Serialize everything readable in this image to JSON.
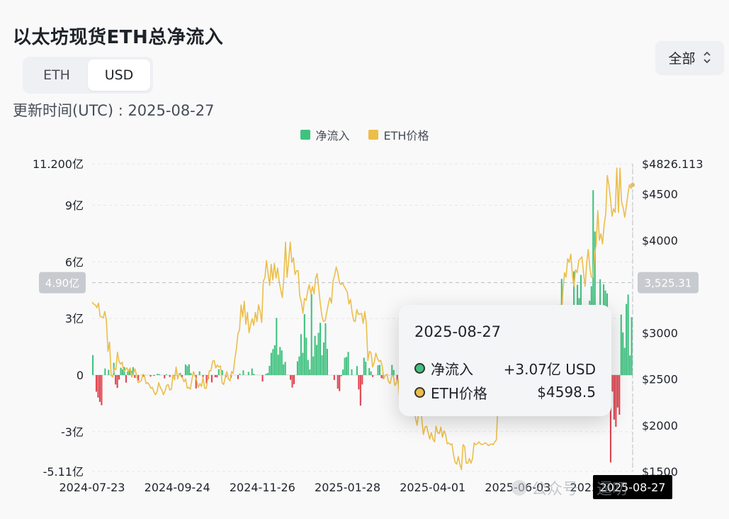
{
  "title": "以太坊现货ETH总净流入",
  "unit_toggle": {
    "options": [
      "ETH",
      "USD"
    ],
    "selected": "USD"
  },
  "range_select": {
    "value": "全部"
  },
  "updated": "更新时间(UTC) : 2025-08-27",
  "legend": [
    {
      "label": "净流入",
      "color": "#40c27f"
    },
    {
      "label": "ETH价格",
      "color": "#ecbe49"
    }
  ],
  "colors": {
    "inflow": "#40c27f",
    "outflow": "#e04550",
    "price": "#ecbe49",
    "grid": "#e6e8ea"
  },
  "crosshair": {
    "left_value": "4.90亿",
    "left_amount": 4.9,
    "right_value": "3,525.31",
    "right_price": 3525.31,
    "x_label": "2025-08-27",
    "x_position": 1.0
  },
  "tooltip": {
    "date": "2025-08-27",
    "rows": [
      {
        "label": "净流入",
        "value": "+3.07亿 USD",
        "dot": "#40c27f"
      },
      {
        "label": "ETH价格",
        "value": "$4598.5",
        "dot": "#ecbe49"
      }
    ]
  },
  "watermark": {
    "text_a": "公众号",
    "text_b": "逼叨"
  },
  "chart_data": {
    "type": "bar",
    "x_start": "2024-07-23",
    "x_end": "2025-08-27",
    "x_ticks": [
      "2024-07-23",
      "2024-09-24",
      "2024-11-26",
      "2025-01-28",
      "2025-04-01",
      "2025-06-03",
      "2025-08-05"
    ],
    "y_left": {
      "ticks": [
        11.2,
        9,
        6,
        3,
        0,
        -3,
        -5.11
      ],
      "tick_labels": [
        "11.200亿",
        "9亿",
        "6亿",
        "3亿",
        "0",
        "-3亿",
        "-5.11亿"
      ],
      "range": [
        -5.11,
        11.2
      ]
    },
    "y_right": {
      "ticks": [
        4826.113,
        4500,
        4000,
        3000,
        2500,
        2000,
        1500
      ],
      "tick_labels": [
        "$4826.113",
        "$4500",
        "$4000",
        "$3000",
        "$2500",
        "$2000",
        "$1500"
      ],
      "range": [
        1500,
        4826.113
      ]
    },
    "series": [
      {
        "name": "净流入",
        "axis": "left",
        "kind": "bar",
        "values": [
          1.06,
          0,
          -0.88,
          -1.19,
          -1.42,
          -1.6,
          0,
          0.35,
          0,
          0.28,
          0,
          0,
          0.65,
          -0.5,
          -0.68,
          -0.24,
          0.39,
          0.3,
          0.43,
          -0.4,
          0.2,
          0.33,
          0.23,
          0.42,
          -0.15,
          0,
          -0.29,
          0,
          0,
          -0.08,
          0,
          0,
          0,
          -0.08,
          0,
          -0.04,
          0,
          0.07,
          0.05,
          0,
          0,
          -0.17,
          0.04,
          0,
          -0.1,
          0,
          -0.07,
          -0.04,
          0,
          0,
          0.11,
          -0.11,
          0,
          0.56,
          0.48,
          0.57,
          0.11,
          0,
          0,
          -0.71,
          0,
          0.2,
          0,
          -0.1,
          0,
          -0.44,
          -0.2,
          0,
          -0.39,
          0,
          -0.11,
          -0.12,
          0.31,
          0,
          0.26,
          0,
          -0.12,
          0,
          0,
          -0.14,
          0,
          0,
          0,
          -0.21,
          0.07,
          0,
          0.25,
          0,
          0,
          0.17,
          0,
          0.35,
          0.07,
          0,
          0,
          0,
          0,
          -0.34,
          0,
          0.07,
          0.11,
          0.49,
          1.18,
          1.38,
          1.58,
          3.03,
          1.08,
          1.49,
          1.31,
          0.57,
          0.7,
          0,
          0,
          -0.25,
          -0.66,
          -0.48,
          0,
          0.73,
          0.99,
          2.17,
          1.18,
          3.23,
          1.98,
          0.8,
          0.3,
          4.3,
          0.99,
          2.08,
          1.6,
          2.24,
          2.77,
          1.05,
          1.73,
          2.75,
          1.39,
          0,
          0,
          0,
          -0.26,
          0,
          -0.72,
          -0.85,
          -0.06,
          0.29,
          0.92,
          0.96,
          1.23,
          0,
          0.31,
          0,
          0,
          0.48,
          -0.76,
          -1.62,
          -0.5,
          0.92,
          0.71,
          0,
          0.37,
          0.19,
          -0.1,
          0,
          0,
          0.52,
          0.54,
          -0.16,
          -0.19,
          0,
          0,
          0,
          0,
          0.54,
          0.27,
          0,
          -0.29,
          0,
          0.84,
          0.19,
          0.42,
          0,
          -1.22,
          0.69,
          0,
          0,
          -0.28,
          0.98,
          0,
          -0.17,
          0.08,
          0,
          0,
          0,
          0,
          0.11,
          -0.14,
          0,
          -0.4,
          -0.6,
          -0.84,
          0,
          0,
          -0.49,
          -0.45,
          0,
          0,
          -0.24,
          0,
          -0.09,
          -0.02,
          0,
          0,
          0,
          0,
          0,
          -0.11,
          0,
          -0.02,
          0.32,
          0,
          0,
          0,
          0,
          0,
          0.14,
          0.23,
          0,
          0,
          0,
          -0.24,
          0.23,
          0,
          0.34,
          0,
          0,
          0.03,
          0.31,
          -0.08,
          0,
          0,
          0,
          0,
          -0.27,
          0,
          0,
          0.16,
          0,
          0,
          0,
          -0.07,
          0.36,
          0,
          0.59,
          0,
          0.07,
          0.43,
          0,
          0,
          0,
          0,
          0,
          0.98,
          0,
          0.36,
          0,
          0,
          0,
          0,
          3.73,
          5.1,
          2.66,
          3.1,
          0.98,
          2.43,
          3.68,
          2.1,
          5.5,
          0.78,
          4.79,
          4.08,
          5.31,
          2.03,
          1.87,
          2.98,
          2.4,
          3.94,
          4.71,
          9.8,
          7.61,
          -1.73,
          3.27,
          5.08,
          3.47,
          4.81,
          4.48,
          4.33,
          -0.54,
          -4.63,
          -0.87,
          -2.36,
          -2.74,
          -1.72,
          -2.1,
          3.21,
          2.26,
          1.45,
          3.77,
          4.27,
          1.04,
          3.07
        ]
      },
      {
        "name": "ETH价格",
        "axis": "right",
        "kind": "line",
        "values": [
          3330,
          3310,
          3300,
          3270,
          3320,
          3180,
          3170,
          3160,
          3230,
          3140,
          2800,
          2900,
          2540,
          2520,
          2620,
          2600,
          2790,
          2690,
          2660,
          2680,
          2580,
          2600,
          2620,
          2580,
          2620,
          2520,
          2560,
          2610,
          2540,
          2460,
          2470,
          2480,
          2550,
          2540,
          2450,
          2460,
          2440,
          2400,
          2410,
          2360,
          2330,
          2360,
          2460,
          2410,
          2380,
          2330,
          2370,
          2430,
          2440,
          2380,
          2390,
          2540,
          2490,
          2630,
          2500,
          2560,
          2530,
          2510,
          2470,
          2500,
          2400,
          2410,
          2390,
          2500,
          2580,
          2530,
          2480,
          2410,
          2450,
          2420,
          2520,
          2400,
          2400,
          2500,
          2590,
          2590,
          2690,
          2700,
          2620,
          2650,
          2630,
          2640,
          2460,
          2440,
          2520,
          2580,
          2500,
          2480,
          2580,
          2560,
          2710,
          2820,
          2990,
          3030,
          3300,
          3170,
          3340,
          3090,
          3220,
          3000,
          3090,
          3150,
          3080,
          3220,
          3120,
          3300,
          3230,
          3110,
          3560,
          3590,
          3780,
          3640,
          3510,
          3740,
          3570,
          3750,
          3590,
          3700,
          3560,
          3460,
          3380,
          3600,
          3980,
          3600,
          3780,
          3980,
          3760,
          3810,
          3630,
          3670,
          3670,
          3400,
          3330,
          3210,
          3370,
          3350,
          3450,
          3520,
          3420,
          3500,
          3420,
          3590,
          3640,
          3470,
          3310,
          3180,
          3120,
          3130,
          3220,
          3310,
          3380,
          3320,
          3560,
          3620,
          3710,
          3650,
          3540,
          3520,
          3540,
          3500,
          3470,
          3440,
          3310,
          3360,
          3220,
          3130,
          3120,
          3250,
          3200,
          3200,
          3210,
          3100,
          3230,
          3100,
          2700,
          2800,
          2780,
          2630,
          2680,
          2780,
          2720,
          2690,
          2700,
          2640,
          2500,
          2540,
          2550,
          2470,
          2450,
          2530,
          2540,
          2430,
          2460,
          2500,
          2280,
          2340,
          2420,
          2480,
          2460,
          2320,
          2180,
          2200,
          2320,
          2230,
          2080,
          2000,
          2130,
          2250,
          2070,
          1900,
          1980,
          1990,
          1920,
          1850,
          1920,
          1850,
          1820,
          1990,
          1920,
          1910,
          1980,
          1870,
          1940,
          1900,
          1800,
          1810,
          1790,
          1800,
          1680,
          1600,
          1580,
          1660,
          1580,
          1520,
          1790,
          1770,
          1590,
          1590,
          1640,
          1590,
          1640,
          1810,
          1790,
          1800,
          1820,
          1800,
          1790,
          1800,
          1810,
          1800,
          1780,
          1790,
          1800,
          1790,
          1820,
          1840,
          2200,
          2600,
          2500,
          2520,
          2570,
          2570,
          2510,
          2500,
          2590,
          2680,
          2510,
          2540,
          2700,
          2610,
          2670,
          2660,
          2660,
          2490,
          2610,
          2500,
          2560,
          2500,
          2510,
          2430,
          2260,
          2480,
          2430,
          2460,
          2440,
          2400,
          2450,
          2550,
          2550,
          2510,
          2600,
          2610,
          2660,
          2900,
          3000,
          2970,
          3120,
          3450,
          3650,
          3600,
          3800,
          3760,
          3850,
          3620,
          3500,
          3680,
          3650,
          3780,
          3800,
          3820,
          3650,
          3500,
          3750,
          3900,
          3700,
          3600,
          3600,
          3850,
          3950,
          4320,
          4000,
          4070,
          3960,
          4160,
          4280,
          4700,
          4600,
          4450,
          4260,
          4340,
          4300,
          4780,
          4300,
          4780,
          4420,
          4350,
          4250,
          4360,
          4500,
          4600,
          4560,
          4598.5
        ]
      }
    ]
  }
}
